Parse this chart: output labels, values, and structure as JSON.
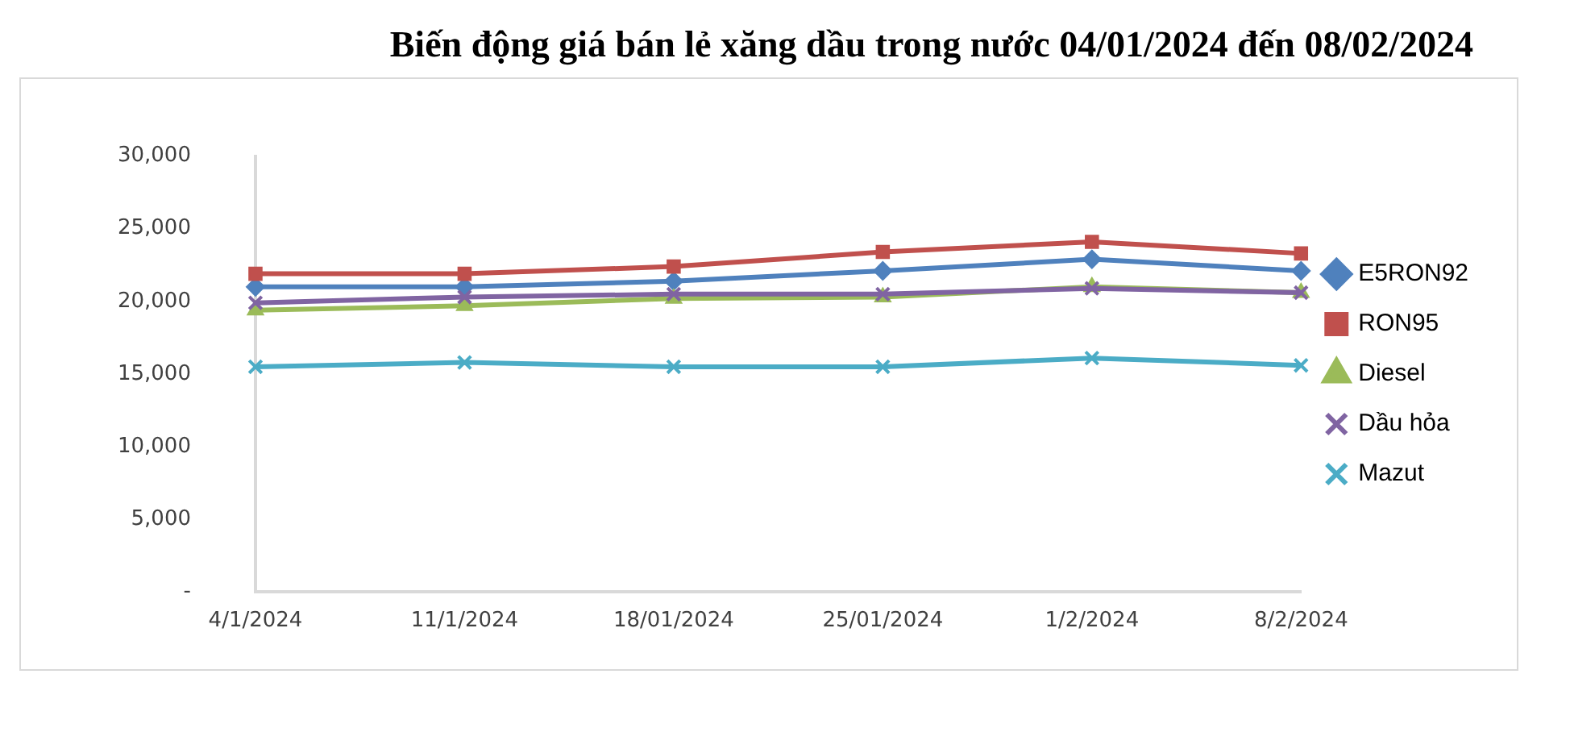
{
  "chart_data": {
    "type": "line",
    "title": "Biến động giá bán lẻ xăng dầu trong nước 04/01/2024 đến 08/02/2024",
    "categories": [
      "4/1/2024",
      "11/1/2024",
      "18/01/2024",
      "25/01/2024",
      "1/2/2024",
      "8/2/2024"
    ],
    "series": [
      {
        "name": "E5RON92",
        "color": "#4f81bd",
        "marker": "diamond",
        "values": [
          21000,
          21000,
          21400,
          22100,
          22900,
          22100
        ]
      },
      {
        "name": "RON95",
        "color": "#c0504d",
        "marker": "square",
        "values": [
          21900,
          21900,
          22400,
          23400,
          24100,
          23300
        ]
      },
      {
        "name": "Diesel",
        "color": "#9bbb59",
        "marker": "triangle",
        "values": [
          19400,
          19700,
          20200,
          20300,
          21000,
          20600
        ]
      },
      {
        "name": "Dầu hỏa",
        "color": "#8064a2",
        "marker": "cross",
        "values": [
          19900,
          20300,
          20500,
          20500,
          20900,
          20600
        ]
      },
      {
        "name": "Mazut",
        "color": "#4bacc6",
        "marker": "cross",
        "values": [
          15500,
          15800,
          15500,
          15500,
          16100,
          15600
        ]
      }
    ],
    "ylim": [
      0,
      30000
    ],
    "yticks": [
      {
        "value": 0,
        "label": "-"
      },
      {
        "value": 5000,
        "label": "5,000"
      },
      {
        "value": 10000,
        "label": "10,000"
      },
      {
        "value": 15000,
        "label": "15,000"
      },
      {
        "value": 20000,
        "label": "20,000"
      },
      {
        "value": 25000,
        "label": "25,000"
      },
      {
        "value": 30000,
        "label": "30,000"
      }
    ],
    "grid": false,
    "legend": "right"
  }
}
